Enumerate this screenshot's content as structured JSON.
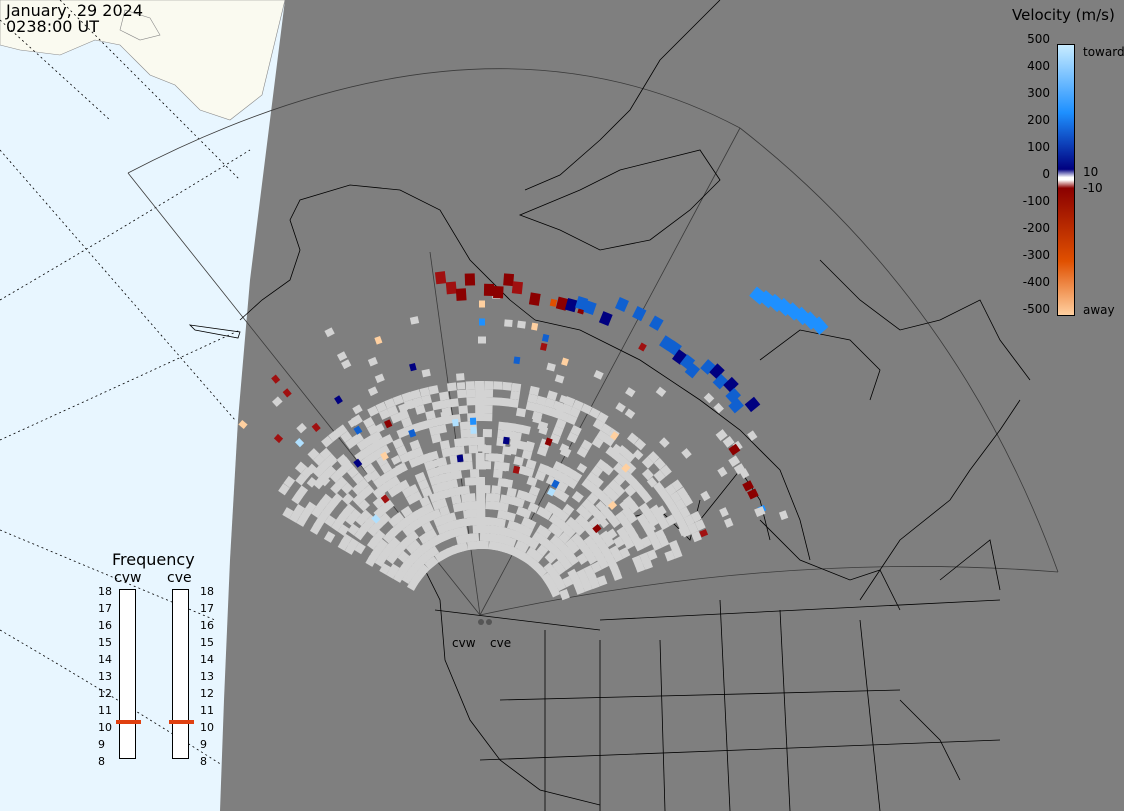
{
  "header": {
    "date": "January, 29 2024",
    "time": "0238:00 UT"
  },
  "velocity_scale": {
    "title": "Velocity (m/s)",
    "ticks": [
      "500",
      "400",
      "300",
      "200",
      "100",
      "0",
      "-100",
      "-200",
      "-300",
      "-400",
      "-500"
    ],
    "inner_ticks": [
      "10",
      "-10"
    ],
    "toward_label": "toward",
    "away_label": "away",
    "colors": {
      "toward_max": "#c8ecff",
      "toward_mid": "#1e90ff",
      "toward_min": "#000080",
      "away_min": "#8b0000",
      "away_mid": "#e05000",
      "away_max": "#ffd0a0",
      "ground_scatter": "#d3d3d3"
    }
  },
  "frequency": {
    "title": "Frequency",
    "stations": [
      {
        "code": "cvw",
        "value_mhz": 10.8
      },
      {
        "code": "cve",
        "value_mhz": 10.8
      }
    ],
    "ticks": [
      "18",
      "17",
      "16",
      "15",
      "14",
      "13",
      "12",
      "11",
      "10",
      "9",
      "8"
    ]
  },
  "radar_sites": [
    {
      "label": "cvw"
    },
    {
      "label": "cve"
    }
  ],
  "map": {
    "projection": "polar stereographic, north-pole centered",
    "night_color": "#7f7f7f",
    "day_sea_color": "#e8f6ff",
    "day_land_color": "#fafaf0"
  }
}
